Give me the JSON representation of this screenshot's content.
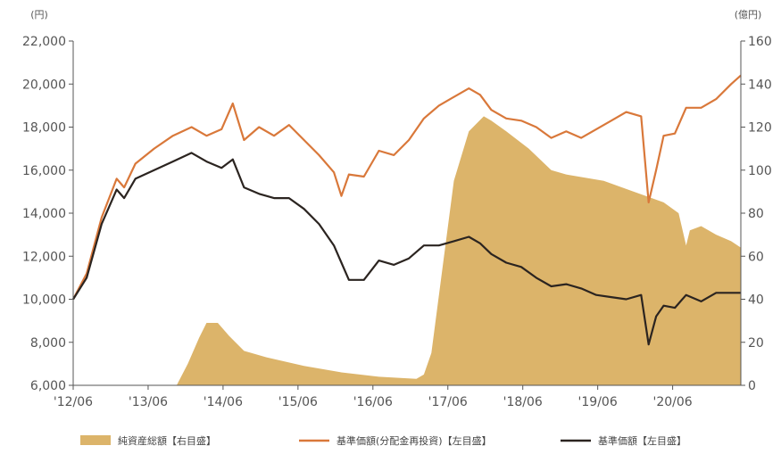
{
  "chart_data": {
    "type": "line",
    "unit_left": "(円)",
    "unit_right": "(億円)",
    "x_ticks": [
      "'12/06",
      "'13/06",
      "'14/06",
      "'15/06",
      "'16/06",
      "'17/06",
      "'18/06",
      "'19/06",
      "'20/06"
    ],
    "y_left_ticks": [
      "6,000",
      "8,000",
      "10,000",
      "12,000",
      "14,000",
      "16,000",
      "18,000",
      "20,000",
      "22,000"
    ],
    "y_right_ticks": [
      "0",
      "20",
      "40",
      "60",
      "80",
      "100",
      "120",
      "140",
      "160"
    ],
    "ylim_left": [
      6000,
      22000
    ],
    "ylim_right": [
      0,
      160
    ],
    "xlim": [
      2012.42,
      2021.33
    ],
    "series": [
      {
        "name": "純資産総額【右目盛】",
        "kind": "area",
        "axis": "right",
        "color": "#dcb46a",
        "x": [
          2013.8,
          2013.95,
          2014.1,
          2014.2,
          2014.35,
          2014.5,
          2014.7,
          2015.0,
          2015.5,
          2016.0,
          2016.5,
          2017.0,
          2017.1,
          2017.2,
          2017.35,
          2017.5,
          2017.7,
          2017.9,
          2018.0,
          2018.2,
          2018.5,
          2018.8,
          2019.0,
          2019.5,
          2019.9,
          2020.3,
          2020.5,
          2020.6,
          2020.65,
          2020.8,
          2021.0,
          2021.2,
          2021.33
        ],
        "values": [
          0,
          10,
          22,
          29,
          29,
          23,
          16,
          13,
          9,
          6,
          4,
          3,
          5,
          15,
          55,
          95,
          118,
          125,
          123,
          118,
          110,
          100,
          98,
          95,
          90,
          85,
          80,
          65,
          72,
          74,
          70,
          67,
          64
        ]
      },
      {
        "name": "基準価額(分配金再投資)【左目盛】",
        "kind": "line",
        "axis": "left",
        "color": "#d9783a",
        "x": [
          2012.42,
          2012.6,
          2012.8,
          2013.0,
          2013.1,
          2013.25,
          2013.5,
          2013.75,
          2014.0,
          2014.2,
          2014.4,
          2014.55,
          2014.7,
          2014.9,
          2015.1,
          2015.3,
          2015.5,
          2015.7,
          2015.9,
          2016.0,
          2016.1,
          2016.3,
          2016.5,
          2016.7,
          2016.9,
          2017.1,
          2017.3,
          2017.5,
          2017.7,
          2017.85,
          2018.0,
          2018.2,
          2018.4,
          2018.6,
          2018.8,
          2019.0,
          2019.2,
          2019.4,
          2019.6,
          2019.8,
          2020.0,
          2020.1,
          2020.2,
          2020.3,
          2020.45,
          2020.6,
          2020.8,
          2021.0,
          2021.2,
          2021.33
        ],
        "values": [
          10000,
          11200,
          13800,
          15600,
          15200,
          16300,
          17000,
          17600,
          18000,
          17600,
          17900,
          19100,
          17400,
          18000,
          17600,
          18100,
          17400,
          16700,
          15900,
          14800,
          15800,
          15700,
          16900,
          16700,
          17400,
          18400,
          19000,
          19400,
          19800,
          19500,
          18800,
          18400,
          18300,
          18000,
          17500,
          17800,
          17500,
          17900,
          18300,
          18700,
          18500,
          14500,
          16000,
          17600,
          17700,
          18900,
          18900,
          19300,
          20000,
          20400
        ]
      },
      {
        "name": "基準価額【左目盛】",
        "kind": "line",
        "axis": "left",
        "color": "#2b2420",
        "x": [
          2012.42,
          2012.6,
          2012.8,
          2013.0,
          2013.1,
          2013.25,
          2013.5,
          2013.75,
          2014.0,
          2014.2,
          2014.4,
          2014.55,
          2014.7,
          2014.9,
          2015.1,
          2015.3,
          2015.5,
          2015.7,
          2015.9,
          2016.0,
          2016.1,
          2016.3,
          2016.5,
          2016.7,
          2016.9,
          2017.1,
          2017.3,
          2017.5,
          2017.7,
          2017.85,
          2018.0,
          2018.2,
          2018.4,
          2018.6,
          2018.8,
          2019.0,
          2019.2,
          2019.4,
          2019.6,
          2019.8,
          2020.0,
          2020.1,
          2020.2,
          2020.3,
          2020.45,
          2020.6,
          2020.8,
          2021.0,
          2021.2,
          2021.33
        ],
        "values": [
          10000,
          11000,
          13500,
          15100,
          14700,
          15600,
          16000,
          16400,
          16800,
          16400,
          16100,
          16500,
          15200,
          14900,
          14700,
          14700,
          14200,
          13500,
          12500,
          11700,
          10900,
          10900,
          11800,
          11600,
          11900,
          12500,
          12500,
          12700,
          12900,
          12600,
          12100,
          11700,
          11500,
          11000,
          10600,
          10700,
          10500,
          10200,
          10100,
          10000,
          10200,
          7900,
          9200,
          9700,
          9600,
          10200,
          9900,
          10300,
          10300,
          10300
        ]
      }
    ],
    "legend": [
      {
        "label": "純資産総額【右目盛】",
        "color": "#dcb46a",
        "kind": "area"
      },
      {
        "label": "基準価額(分配金再投資)【左目盛】",
        "color": "#d9783a",
        "kind": "line"
      },
      {
        "label": "基準価額【左目盛】",
        "color": "#2b2420",
        "kind": "line"
      }
    ],
    "legend_position": "bottom",
    "grid": false
  }
}
